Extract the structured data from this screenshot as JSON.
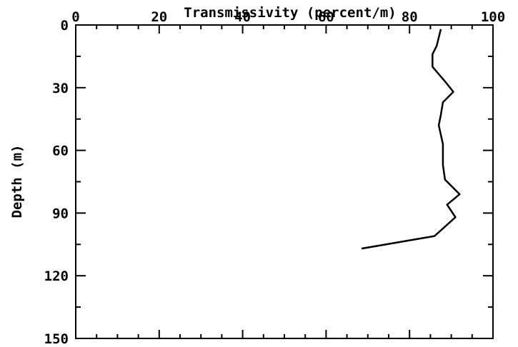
{
  "chart_data": {
    "type": "line",
    "title": "",
    "xlabel": "Transmissivity (percent/m)",
    "ylabel": "Depth (m)",
    "xlim": [
      0,
      100
    ],
    "ylim": [
      0,
      150
    ],
    "y_inverted": true,
    "x_axis_position": "top",
    "grid": false,
    "x_ticks": [
      0,
      20,
      40,
      60,
      80,
      100
    ],
    "y_ticks": [
      0,
      30,
      60,
      90,
      120,
      150
    ],
    "x_tick_labels": [
      "0",
      "20",
      "40",
      "60",
      "80",
      "100"
    ],
    "y_tick_labels": [
      "0",
      "30",
      "60",
      "90",
      "120",
      "150"
    ],
    "series": [
      {
        "color": "#000000",
        "points": [
          {
            "x": 87.5,
            "depth": 2
          },
          {
            "x": 86.5,
            "depth": 10
          },
          {
            "x": 85.5,
            "depth": 14
          },
          {
            "x": 85.5,
            "depth": 20
          },
          {
            "x": 88.5,
            "depth": 27
          },
          {
            "x": 90.5,
            "depth": 32
          },
          {
            "x": 88.0,
            "depth": 37
          },
          {
            "x": 87.5,
            "depth": 43
          },
          {
            "x": 87.0,
            "depth": 48
          },
          {
            "x": 88.0,
            "depth": 57
          },
          {
            "x": 88.0,
            "depth": 67
          },
          {
            "x": 88.5,
            "depth": 74
          },
          {
            "x": 92.0,
            "depth": 81
          },
          {
            "x": 89.0,
            "depth": 86
          },
          {
            "x": 91.0,
            "depth": 92
          },
          {
            "x": 86.0,
            "depth": 101
          },
          {
            "x": 68.5,
            "depth": 107
          }
        ]
      }
    ]
  }
}
